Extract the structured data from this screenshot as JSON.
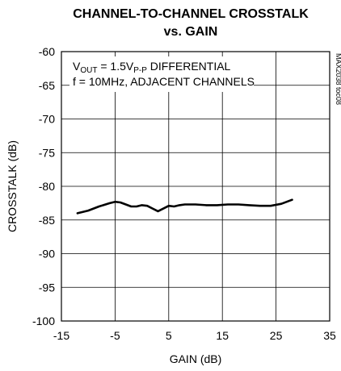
{
  "chart_data": {
    "type": "line",
    "title_line1": "CHANNEL-TO-CHANNEL CROSSTALK",
    "title_line2": "vs. GAIN",
    "xlabel": "GAIN (dB)",
    "ylabel": "CROSSTALK (dB)",
    "xlim": [
      -15,
      35
    ],
    "ylim": [
      -100,
      -60
    ],
    "xticks": [
      -15,
      -5,
      5,
      15,
      25,
      35
    ],
    "yticks": [
      -60,
      -65,
      -70,
      -75,
      -80,
      -85,
      -90,
      -95,
      -100
    ],
    "grid": true,
    "annotation": {
      "line1_prefix": "V",
      "line1_sub1": "OUT",
      "line1_mid": " = 1.5V",
      "line1_sub2": "P-P",
      "line1_suffix": " DIFFERENTIAL",
      "line2": "f = 10MHz, ADJACENT CHANNELS"
    },
    "side_label": "MAX2038 toc08",
    "series": [
      {
        "x": [
          -12,
          -10,
          -8,
          -6,
          -5,
          -4,
          -3,
          -2,
          -1,
          0,
          1,
          2,
          3,
          4,
          5,
          6,
          7,
          8,
          10,
          12,
          14,
          16,
          18,
          20,
          22,
          24,
          26,
          28
        ],
        "y": [
          -84.0,
          -83.6,
          -83.0,
          -82.5,
          -82.3,
          -82.4,
          -82.7,
          -83.0,
          -83.0,
          -82.8,
          -82.9,
          -83.3,
          -83.7,
          -83.3,
          -82.9,
          -83.0,
          -82.8,
          -82.7,
          -82.7,
          -82.8,
          -82.8,
          -82.7,
          -82.7,
          -82.8,
          -82.9,
          -82.9,
          -82.6,
          -82.0
        ]
      }
    ],
    "line_color": "#000000"
  }
}
